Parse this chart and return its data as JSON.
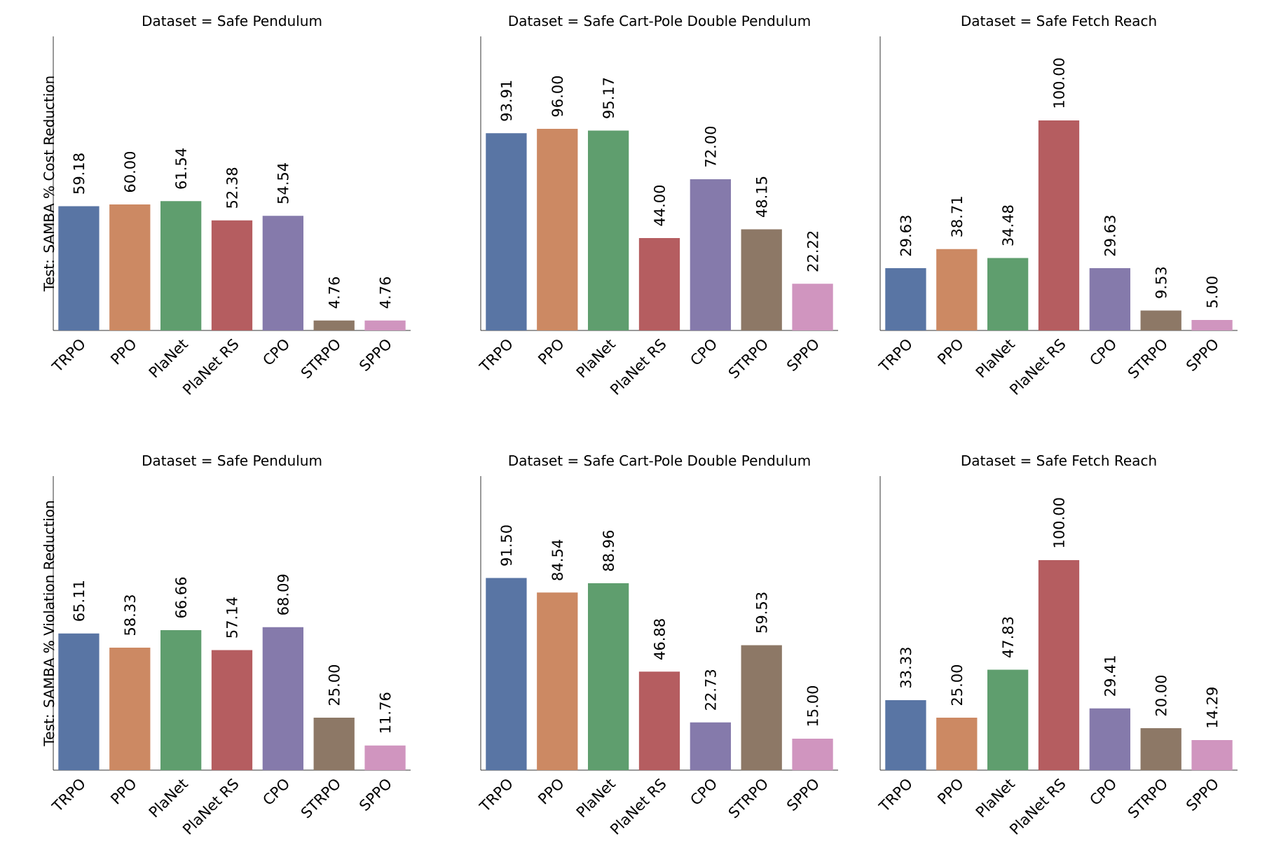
{
  "chart_data": [
    {
      "type": "bar",
      "title": "Dataset = Safe Pendulum",
      "ylabel": "Test: SAMBA % Cost Reduction",
      "categories": [
        "TRPO",
        "PPO",
        "PlaNet",
        "PlaNet RS",
        "CPO",
        "STRPO",
        "SPPO"
      ],
      "values": [
        59.18,
        60.0,
        61.54,
        52.38,
        54.54,
        4.76,
        4.76
      ],
      "value_labels": [
        "59.18",
        "60.00",
        "61.54",
        "52.38",
        "54.54",
        "4.76",
        "4.76"
      ],
      "colors": [
        "#5975a4",
        "#cc8963",
        "#5f9e6e",
        "#b55d60",
        "#857aab",
        "#8d7866",
        "#d095bf"
      ],
      "tick_labels": "x"
    },
    {
      "type": "bar",
      "title": "Dataset = Safe Cart-Pole Double Pendulum",
      "categories": [
        "TRPO",
        "PPO",
        "PlaNet",
        "PlaNet RS",
        "CPO",
        "STRPO",
        "SPPO"
      ],
      "values": [
        93.91,
        96.0,
        95.17,
        44.0,
        72.0,
        48.15,
        22.22
      ],
      "value_labels": [
        "93.91",
        "96.00",
        "95.17",
        "44.00",
        "72.00",
        "48.15",
        "22.22"
      ],
      "colors": [
        "#5975a4",
        "#cc8963",
        "#5f9e6e",
        "#b55d60",
        "#857aab",
        "#8d7866",
        "#d095bf"
      ],
      "tick_labels": "x"
    },
    {
      "type": "bar",
      "title": "Dataset = Safe Fetch Reach",
      "categories": [
        "TRPO",
        "PPO",
        "PlaNet",
        "PlaNet RS",
        "CPO",
        "STRPO",
        "SPPO"
      ],
      "values": [
        29.63,
        38.71,
        34.48,
        100.0,
        29.63,
        9.53,
        5.0
      ],
      "value_labels": [
        "29.63",
        "38.71",
        "34.48",
        "100.00",
        "29.63",
        "9.53",
        "5.00"
      ],
      "colors": [
        "#5975a4",
        "#cc8963",
        "#5f9e6e",
        "#b55d60",
        "#857aab",
        "#8d7866",
        "#d095bf"
      ],
      "tick_labels": "x"
    },
    {
      "type": "bar",
      "title": "Dataset = Safe Pendulum",
      "ylabel": "Test: SAMBA % Violation Reduction",
      "categories": [
        "TRPO",
        "PPO",
        "PlaNet",
        "PlaNet RS",
        "CPO",
        "STRPO",
        "SPPO"
      ],
      "values": [
        65.11,
        58.33,
        66.66,
        57.14,
        68.09,
        25.0,
        11.76
      ],
      "value_labels": [
        "65.11",
        "58.33",
        "66.66",
        "57.14",
        "68.09",
        "25.00",
        "11.76"
      ],
      "colors": [
        "#5975a4",
        "#cc8963",
        "#5f9e6e",
        "#b55d60",
        "#857aab",
        "#8d7866",
        "#d095bf"
      ],
      "tick_labels": "x"
    },
    {
      "type": "bar",
      "title": "Dataset = Safe Cart-Pole Double Pendulum",
      "categories": [
        "TRPO",
        "PPO",
        "PlaNet",
        "PlaNet RS",
        "CPO",
        "STRPO",
        "SPPO"
      ],
      "values": [
        91.5,
        84.54,
        88.96,
        46.88,
        22.73,
        59.53,
        15.0
      ],
      "value_labels": [
        "91.50",
        "84.54",
        "88.96",
        "46.88",
        "22.73",
        "59.53",
        "15.00"
      ],
      "colors": [
        "#5975a4",
        "#cc8963",
        "#5f9e6e",
        "#b55d60",
        "#857aab",
        "#8d7866",
        "#d095bf"
      ],
      "tick_labels": "x"
    },
    {
      "type": "bar",
      "title": "Dataset = Safe Fetch Reach",
      "categories": [
        "TRPO",
        "PPO",
        "PlaNet",
        "PlaNet RS",
        "CPO",
        "STRPO",
        "SPPO"
      ],
      "values": [
        33.33,
        25.0,
        47.83,
        100.0,
        29.41,
        20.0,
        14.29
      ],
      "value_labels": [
        "33.33",
        "25.00",
        "47.83",
        "100.00",
        "29.41",
        "20.00",
        "14.29"
      ],
      "colors": [
        "#5975a4",
        "#cc8963",
        "#5f9e6e",
        "#b55d60",
        "#857aab",
        "#8d7866",
        "#d095bf"
      ],
      "tick_labels": "x"
    }
  ]
}
